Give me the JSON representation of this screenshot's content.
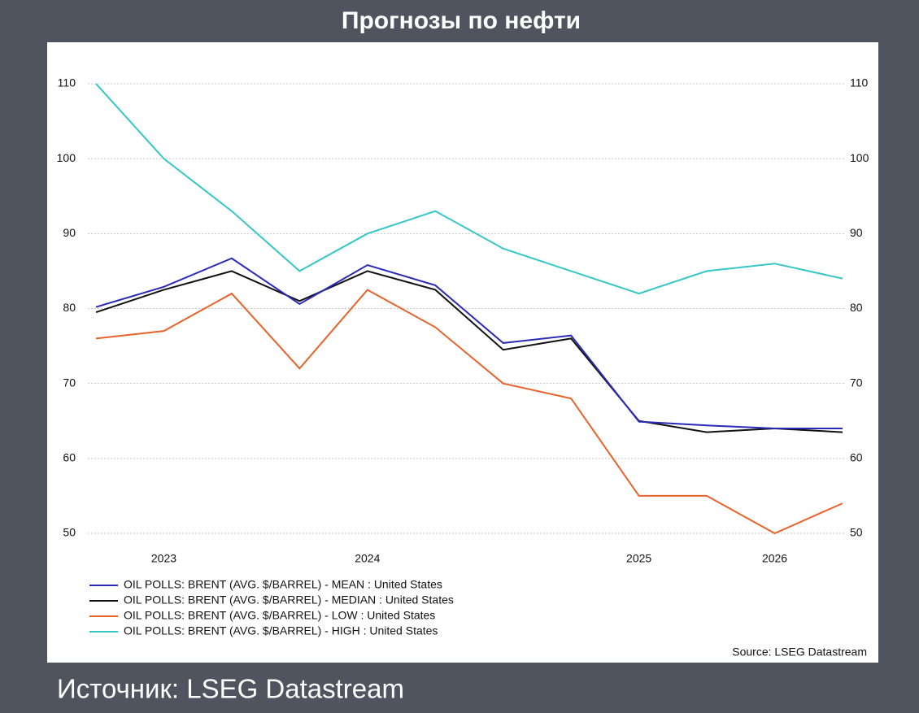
{
  "header": {
    "title": "Прогнозы по нефти"
  },
  "footer": {
    "source": "Источник: LSEG Datastream"
  },
  "chart_data": {
    "type": "line",
    "source": "Source: LSEG Datastream",
    "categories": [
      null,
      "2023",
      null,
      null,
      "2024",
      null,
      null,
      null,
      "2025",
      null,
      "2026",
      null
    ],
    "series": [
      {
        "name": "OIL POLLS: BRENT (AVG. $/BARREL) - MEAN : United States",
        "color": "#2a2ab8",
        "values": [
          80.2,
          82.9,
          86.7,
          80.6,
          85.8,
          83.1,
          75.4,
          76.4,
          64.9,
          64.4,
          64.0,
          64.0
        ]
      },
      {
        "name": "OIL POLLS: BRENT (AVG. $/BARREL) - MEDIAN : United States",
        "color": "#111111",
        "values": [
          79.5,
          82.5,
          85.0,
          81.0,
          85.0,
          82.5,
          74.5,
          76.0,
          65.0,
          63.5,
          64.0,
          63.5
        ]
      },
      {
        "name": "OIL POLLS: BRENT (AVG. $/BARREL) - LOW : United States",
        "color": "#e8622a",
        "values": [
          76.0,
          77.0,
          82.0,
          72.0,
          82.5,
          77.5,
          70.0,
          68.0,
          55.0,
          55.0,
          50.0,
          54.0
        ]
      },
      {
        "name": "OIL POLLS: BRENT (AVG. $/BARREL) - HIGH : United States",
        "color": "#35c6c6",
        "values": [
          110,
          100,
          93,
          85,
          90,
          93,
          88,
          85,
          82,
          85,
          86,
          84
        ]
      }
    ],
    "ylim": [
      50,
      110
    ],
    "yticks": [
      50,
      60,
      70,
      80,
      90,
      100,
      110
    ],
    "grid": true,
    "legend": "bottom-left"
  }
}
